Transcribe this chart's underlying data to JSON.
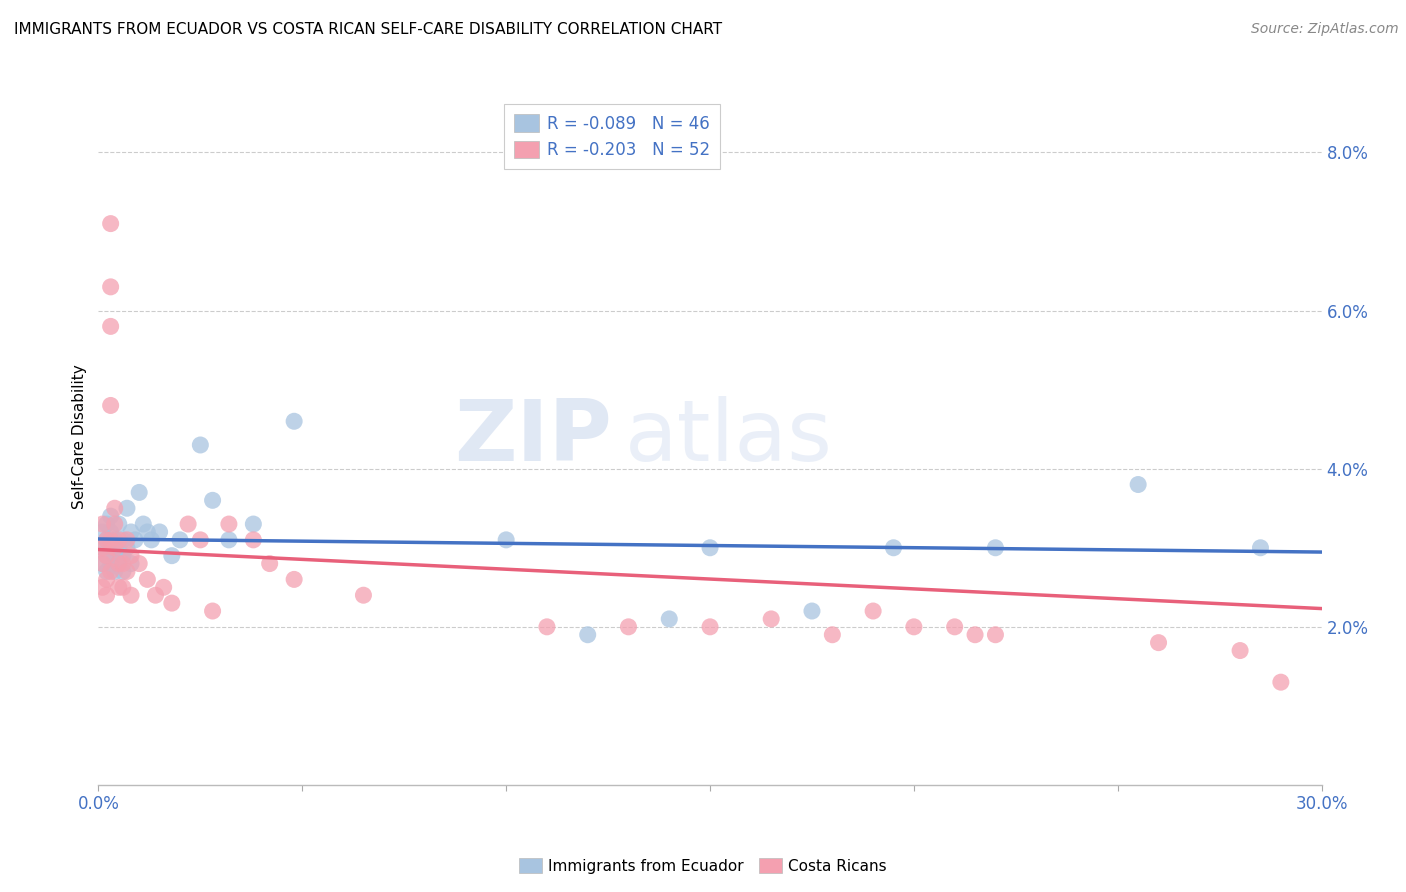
{
  "title": "IMMIGRANTS FROM ECUADOR VS COSTA RICAN SELF-CARE DISABILITY CORRELATION CHART",
  "source": "Source: ZipAtlas.com",
  "ylabel": "Self-Care Disability",
  "legend_label1": "Immigrants from Ecuador",
  "legend_label2": "Costa Ricans",
  "r1": -0.089,
  "n1": 46,
  "r2": -0.203,
  "n2": 52,
  "color1": "#a8c4e0",
  "color2": "#f4a0b0",
  "line_color1": "#4472c4",
  "line_color2": "#e8607a",
  "watermark_zip": "ZIP",
  "watermark_atlas": "atlas",
  "xlim": [
    0.0,
    0.3
  ],
  "ylim": [
    0.0,
    0.088
  ],
  "xticks": [
    0.0,
    0.05,
    0.1,
    0.15,
    0.2,
    0.25,
    0.3
  ],
  "yticks_right": [
    0.02,
    0.04,
    0.06,
    0.08
  ],
  "ecuador_x": [
    0.001,
    0.001,
    0.001,
    0.002,
    0.002,
    0.002,
    0.002,
    0.003,
    0.003,
    0.003,
    0.003,
    0.004,
    0.004,
    0.004,
    0.005,
    0.005,
    0.005,
    0.006,
    0.006,
    0.006,
    0.007,
    0.007,
    0.008,
    0.008,
    0.009,
    0.01,
    0.011,
    0.012,
    0.013,
    0.015,
    0.018,
    0.02,
    0.025,
    0.028,
    0.032,
    0.038,
    0.048,
    0.1,
    0.12,
    0.14,
    0.15,
    0.175,
    0.195,
    0.22,
    0.255,
    0.285
  ],
  "ecuador_y": [
    0.03,
    0.032,
    0.028,
    0.031,
    0.029,
    0.033,
    0.027,
    0.03,
    0.032,
    0.028,
    0.034,
    0.029,
    0.031,
    0.027,
    0.03,
    0.028,
    0.033,
    0.029,
    0.031,
    0.027,
    0.03,
    0.035,
    0.032,
    0.028,
    0.031,
    0.037,
    0.033,
    0.032,
    0.031,
    0.032,
    0.029,
    0.031,
    0.043,
    0.036,
    0.031,
    0.033,
    0.046,
    0.031,
    0.019,
    0.021,
    0.03,
    0.022,
    0.03,
    0.03,
    0.038,
    0.03
  ],
  "costarica_x": [
    0.001,
    0.001,
    0.001,
    0.001,
    0.002,
    0.002,
    0.002,
    0.002,
    0.003,
    0.003,
    0.003,
    0.003,
    0.003,
    0.004,
    0.004,
    0.004,
    0.005,
    0.005,
    0.005,
    0.006,
    0.006,
    0.007,
    0.007,
    0.008,
    0.008,
    0.01,
    0.012,
    0.014,
    0.016,
    0.018,
    0.022,
    0.025,
    0.028,
    0.032,
    0.038,
    0.042,
    0.048,
    0.065,
    0.11,
    0.13,
    0.15,
    0.165,
    0.18,
    0.19,
    0.2,
    0.21,
    0.215,
    0.22,
    0.26,
    0.28,
    0.003,
    0.29
  ],
  "costarica_y": [
    0.028,
    0.03,
    0.025,
    0.033,
    0.029,
    0.024,
    0.031,
    0.026,
    0.027,
    0.031,
    0.063,
    0.058,
    0.048,
    0.035,
    0.033,
    0.03,
    0.028,
    0.031,
    0.025,
    0.028,
    0.025,
    0.031,
    0.027,
    0.024,
    0.029,
    0.028,
    0.026,
    0.024,
    0.025,
    0.023,
    0.033,
    0.031,
    0.022,
    0.033,
    0.031,
    0.028,
    0.026,
    0.024,
    0.02,
    0.02,
    0.02,
    0.021,
    0.019,
    0.022,
    0.02,
    0.02,
    0.019,
    0.019,
    0.018,
    0.017,
    0.071,
    0.013
  ]
}
